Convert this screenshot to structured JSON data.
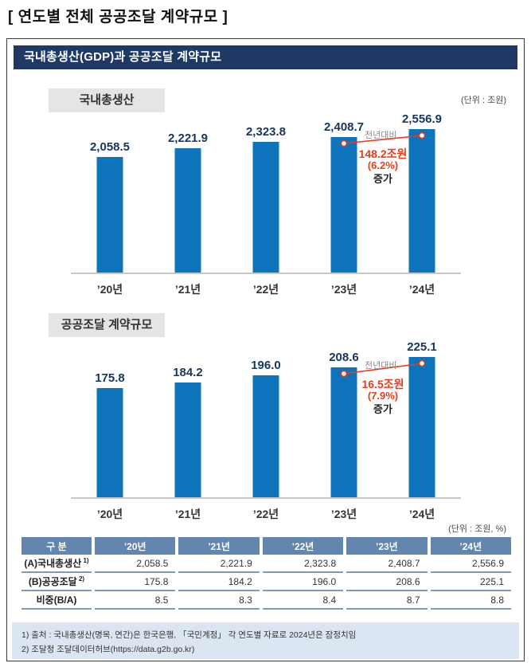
{
  "title": "[ 연도별 전체 공공조달 계약규모 ]",
  "frame": {
    "header": "국내총생산(GDP)과 공공조달 계약규모"
  },
  "colors": {
    "bar": "#0d74bc",
    "header_navy": "#1f3864",
    "annotation_red": "#ee3a16",
    "table_header_bg": "#6286ad",
    "table_line": "#7d9cb8",
    "footnote_bg": "#dce6f2"
  },
  "chart_data": [
    {
      "type": "bar",
      "title": "국내총생산",
      "unit": "(단위 : 조원)",
      "categories": [
        "’20년",
        "’21년",
        "’22년",
        "’23년",
        "’24년"
      ],
      "values": [
        2058.5,
        2221.9,
        2323.8,
        2408.7,
        2556.9
      ],
      "value_labels": [
        "2,058.5",
        "2,221.9",
        "2,323.8",
        "2,408.7",
        "2,556.9"
      ],
      "ylim": [
        0,
        2600
      ],
      "annotation": {
        "label": "전년대비",
        "lines": [
          "148.2조원",
          "(6.2%)",
          "증가"
        ]
      }
    },
    {
      "type": "bar",
      "title": "공공조달 계약규모",
      "categories": [
        "’20년",
        "’21년",
        "’22년",
        "’23년",
        "’24년"
      ],
      "values": [
        175.8,
        184.2,
        196.0,
        208.6,
        225.1
      ],
      "value_labels": [
        "175.8",
        "184.2",
        "196.0",
        "208.6",
        "225.1"
      ],
      "ylim": [
        0,
        230
      ],
      "annotation": {
        "label": "전년대비",
        "lines": [
          "16.5조원",
          "(7.9%)",
          "증가"
        ]
      }
    },
    {
      "type": "table",
      "unit": "(단위 : 조원, %)",
      "columns": [
        "구 분",
        "’20년",
        "’21년",
        "’22년",
        "’23년",
        "’24년"
      ],
      "rows": [
        {
          "label": "(A)국내총생산",
          "sup": "1)",
          "values": [
            "2,058.5",
            "2,221.9",
            "2,323.8",
            "2,408.7",
            "2,556.9"
          ]
        },
        {
          "label": "(B)공공조달",
          "sup": "2)",
          "values": [
            "175.8",
            "184.2",
            "196.0",
            "208.6",
            "225.1"
          ]
        },
        {
          "label": "비중(B/A)",
          "sup": "",
          "values": [
            "8.5",
            "8.3",
            "8.4",
            "8.7",
            "8.8"
          ]
        }
      ]
    }
  ],
  "footnotes": [
    "1) 출처 : 국내총생산(명목, 연간)은 한국은행, 「국민계정」 각 연도별 자료로 2024년은 잠정치임",
    "2) 조달청 조달데이터허브(https://data.g2b.go.kr)"
  ]
}
